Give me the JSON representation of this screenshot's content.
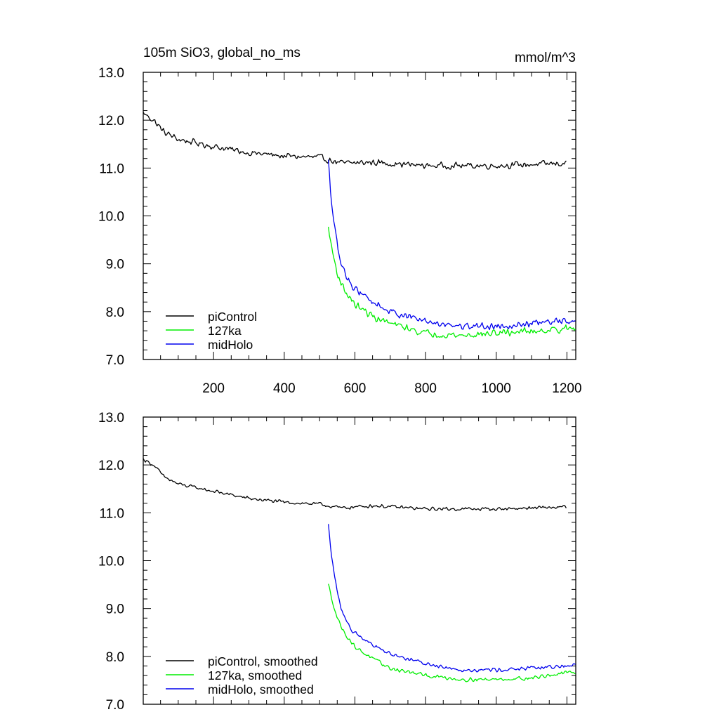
{
  "figure": {
    "title": "105m SiO3, global_no_ms",
    "units": "mmol/m^3"
  },
  "chart_data": [
    {
      "type": "line",
      "xlim": [
        1,
        1225
      ],
      "ylim": [
        7.0,
        13.0
      ],
      "yticks": [
        "7.0",
        "8.0",
        "9.0",
        "10.0",
        "11.0",
        "12.0",
        "13.0"
      ],
      "xticks": [
        "200",
        "400",
        "600",
        "800",
        "1000",
        "1200"
      ],
      "show_xtick_labels": true,
      "legend_position": "bottom-left",
      "series": [
        {
          "name": "piControl",
          "color": "#000000",
          "x_start": 1,
          "x_end": 1200,
          "knots": [
            [
              1,
              12.15
            ],
            [
              30,
              12.0
            ],
            [
              60,
              11.75
            ],
            [
              100,
              11.6
            ],
            [
              200,
              11.45
            ],
            [
              300,
              11.32
            ],
            [
              400,
              11.25
            ],
            [
              500,
              11.22
            ],
            [
              560,
              11.1
            ],
            [
              650,
              11.12
            ],
            [
              800,
              11.05
            ],
            [
              1000,
              11.05
            ],
            [
              1200,
              11.1
            ]
          ],
          "noise": 0.08
        },
        {
          "name": "127ka",
          "color": "#00ee00",
          "x_start": 525,
          "x_end": 1225,
          "knots": [
            [
              525,
              9.75
            ],
            [
              535,
              9.3
            ],
            [
              550,
              8.8
            ],
            [
              570,
              8.45
            ],
            [
              600,
              8.15
            ],
            [
              650,
              7.9
            ],
            [
              700,
              7.75
            ],
            [
              800,
              7.55
            ],
            [
              900,
              7.5
            ],
            [
              1000,
              7.55
            ],
            [
              1100,
              7.6
            ],
            [
              1225,
              7.65
            ]
          ],
          "noise": 0.09
        },
        {
          "name": "midHolo",
          "color": "#0000ee",
          "x_start": 525,
          "x_end": 1225,
          "knots": [
            [
              525,
              11.15
            ],
            [
              532,
              10.4
            ],
            [
              545,
              9.6
            ],
            [
              560,
              9.0
            ],
            [
              590,
              8.55
            ],
            [
              650,
              8.2
            ],
            [
              700,
              8.0
            ],
            [
              800,
              7.8
            ],
            [
              900,
              7.7
            ],
            [
              1000,
              7.7
            ],
            [
              1100,
              7.75
            ],
            [
              1225,
              7.82
            ]
          ],
          "noise": 0.09
        }
      ]
    },
    {
      "type": "line",
      "xlim": [
        1,
        1225
      ],
      "ylim": [
        7.0,
        13.0
      ],
      "yticks": [
        "7.0",
        "8.0",
        "9.0",
        "10.0",
        "11.0",
        "12.0",
        "13.0"
      ],
      "xticks": [
        "200",
        "400",
        "600",
        "800",
        "1000",
        "1200"
      ],
      "show_xtick_labels": false,
      "legend_position": "bottom-left",
      "series": [
        {
          "name": "piControl, smoothed",
          "color": "#000000",
          "x_start": 1,
          "x_end": 1200,
          "knots": [
            [
              1,
              12.12
            ],
            [
              30,
              12.0
            ],
            [
              60,
              11.75
            ],
            [
              100,
              11.6
            ],
            [
              200,
              11.45
            ],
            [
              300,
              11.3
            ],
            [
              400,
              11.22
            ],
            [
              500,
              11.18
            ],
            [
              560,
              11.1
            ],
            [
              650,
              11.15
            ],
            [
              800,
              11.08
            ],
            [
              1000,
              11.08
            ],
            [
              1200,
              11.12
            ]
          ],
          "noise": 0.045
        },
        {
          "name": "127ka, smoothed",
          "color": "#00ee00",
          "x_start": 525,
          "x_end": 1225,
          "knots": [
            [
              525,
              9.5
            ],
            [
              535,
              9.2
            ],
            [
              550,
              8.8
            ],
            [
              570,
              8.5
            ],
            [
              600,
              8.2
            ],
            [
              650,
              7.95
            ],
            [
              700,
              7.75
            ],
            [
              800,
              7.6
            ],
            [
              900,
              7.52
            ],
            [
              1000,
              7.52
            ],
            [
              1100,
              7.55
            ],
            [
              1225,
              7.68
            ]
          ],
          "noise": 0.05
        },
        {
          "name": "midHolo, smoothed",
          "color": "#0000ee",
          "x_start": 525,
          "x_end": 1225,
          "knots": [
            [
              525,
              10.75
            ],
            [
              532,
              10.2
            ],
            [
              545,
              9.55
            ],
            [
              560,
              9.0
            ],
            [
              590,
              8.55
            ],
            [
              650,
              8.25
            ],
            [
              700,
              8.05
            ],
            [
              800,
              7.85
            ],
            [
              900,
              7.72
            ],
            [
              1000,
              7.72
            ],
            [
              1100,
              7.75
            ],
            [
              1225,
              7.82
            ]
          ],
          "noise": 0.05
        }
      ]
    }
  ]
}
